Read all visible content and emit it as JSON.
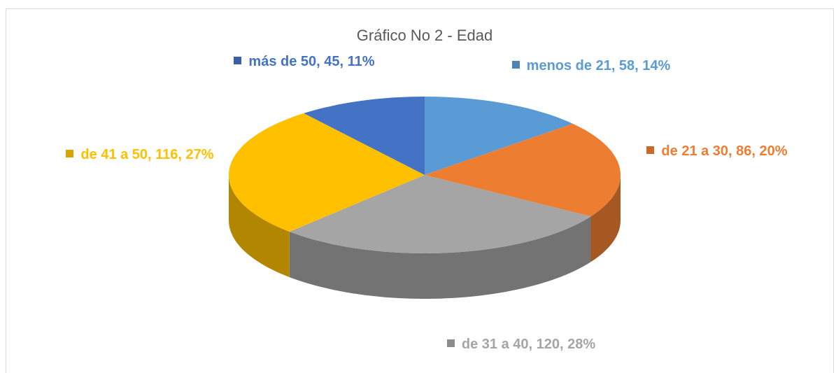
{
  "chart_data": {
    "type": "pie3d",
    "title": "Gráfico No 2 - Edad",
    "categories": [
      "menos de 21",
      "de 21 a 30",
      "de 31 a 40",
      "de 41 a 50",
      "más de 50"
    ],
    "values": [
      58,
      86,
      120,
      116,
      45
    ],
    "value_labels": [
      "menos de 21, 58, 14%",
      "de 21 a 30, 86, 20%",
      "de 31 a 40, 120, 28%",
      "de 41 a 50, 116, 27%",
      "más de 50, 45, 11%"
    ],
    "colors": [
      "#5b9bd5",
      "#ed7d31",
      "#a5a5a5",
      "#ffc000",
      "#4472c4"
    ]
  }
}
